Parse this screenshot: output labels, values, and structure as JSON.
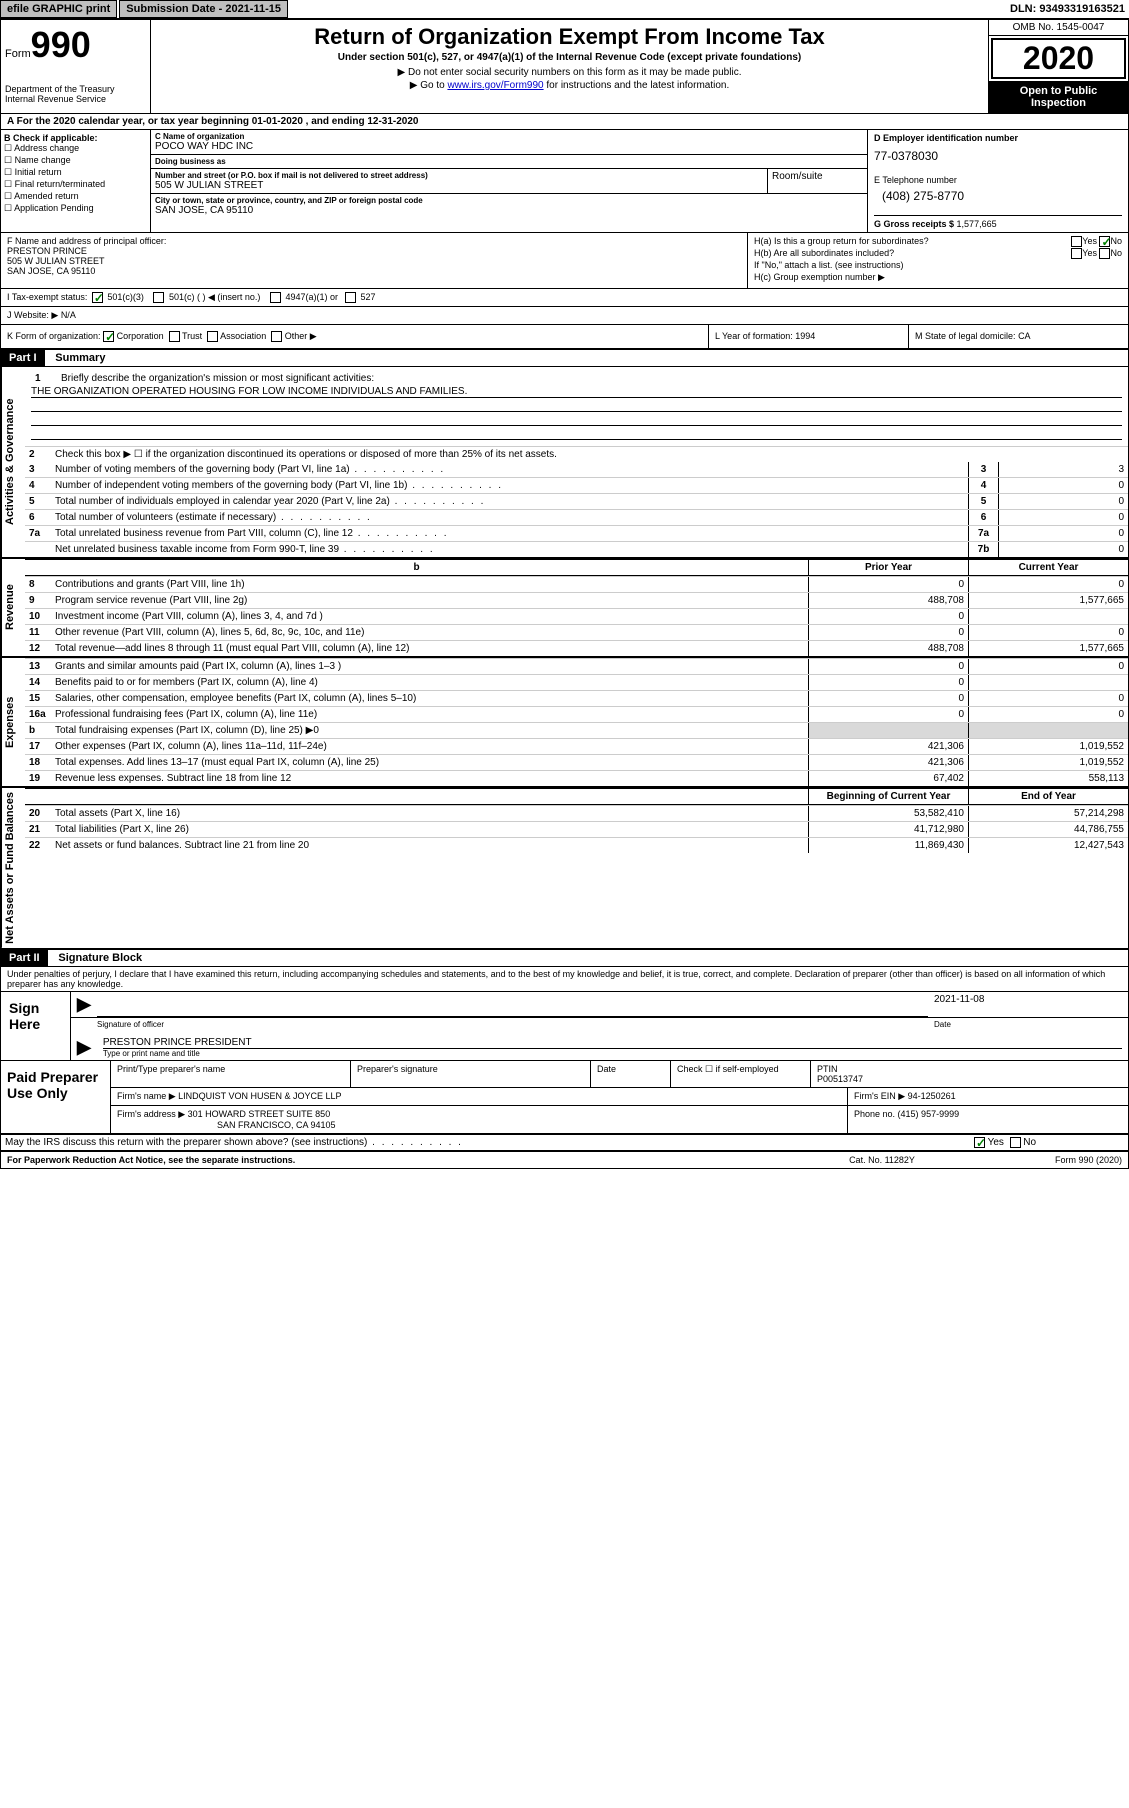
{
  "topbar": {
    "efile": "efile GRAPHIC print",
    "sub_label": "Submission Date - ",
    "sub_date": "2021-11-15",
    "dln_label": "DLN: ",
    "dln": "93493319163521"
  },
  "header": {
    "form_word": "Form",
    "form_num": "990",
    "dept": "Department of the Treasury\nInternal Revenue Service",
    "title": "Return of Organization Exempt From Income Tax",
    "sub": "Under section 501(c), 527, or 4947(a)(1) of the Internal Revenue Code (except private foundations)",
    "note1": "▶ Do not enter social security numbers on this form as it may be made public.",
    "note2_pre": "▶ Go to ",
    "note2_link": "www.irs.gov/Form990",
    "note2_post": " for instructions and the latest information.",
    "omb": "OMB No. 1545-0047",
    "year": "2020",
    "open": "Open to Public Inspection"
  },
  "A": "For the 2020 calendar year, or tax year beginning 01-01-2020  , and ending 12-31-2020",
  "B": {
    "hdr": "B Check if applicable:",
    "items": [
      "Address change",
      "Name change",
      "Initial return",
      "Final return/terminated",
      "Amended return",
      "Application Pending"
    ]
  },
  "C": {
    "name_lbl": "C Name of organization",
    "name": "POCO WAY HDC INC",
    "dba_lbl": "Doing business as",
    "dba": "",
    "street_lbl": "Number and street (or P.O. box if mail is not delivered to street address)",
    "room_lbl": "Room/suite",
    "street": "505 W JULIAN STREET",
    "city_lbl": "City or town, state or province, country, and ZIP or foreign postal code",
    "city": "SAN JOSE, CA  95110"
  },
  "D": {
    "ein_lbl": "D Employer identification number",
    "ein": "77-0378030",
    "tel_lbl": "E Telephone number",
    "tel": "(408) 275-8770",
    "gross_lbl": "G Gross receipts $ ",
    "gross": "1,577,665"
  },
  "F": {
    "lbl": "F  Name and address of principal officer:",
    "name": "PRESTON PRINCE",
    "addr1": "505 W JULIAN STREET",
    "addr2": "SAN JOSE, CA  95110"
  },
  "H": {
    "a": "H(a)  Is this a group return for subordinates?",
    "b": "H(b)  Are all subordinates included?",
    "bnote": "If \"No,\" attach a list. (see instructions)",
    "c": "H(c)  Group exemption number ▶",
    "yes": "Yes",
    "no": "No"
  },
  "I": {
    "lbl": "Tax-exempt status:",
    "o1": "501(c)(3)",
    "o2": "501(c) (  ) ◀ (insert no.)",
    "o3": "4947(a)(1) or",
    "o4": "527"
  },
  "J": {
    "lbl": "Website: ▶",
    "val": "N/A"
  },
  "K": {
    "lbl": "K Form of organization:",
    "opts": [
      "Corporation",
      "Trust",
      "Association",
      "Other ▶"
    ],
    "L": "L Year of formation: ",
    "Lval": "1994",
    "M": "M State of legal domicile: ",
    "Mval": "CA"
  },
  "part1": {
    "label": "Part I",
    "title": "Summary",
    "q1": "Briefly describe the organization's mission or most significant activities:",
    "mission": "THE ORGANIZATION OPERATED HOUSING FOR LOW INCOME INDIVIDUALS AND FAMILIES.",
    "q2": "Check this box ▶ ☐  if the organization discontinued its operations or disposed of more than 25% of its net assets.",
    "gov_label": "Activities & Governance",
    "rows_gov": [
      {
        "n": "3",
        "t": "Number of voting members of the governing body (Part VI, line 1a)",
        "a": "3",
        "v": "3"
      },
      {
        "n": "4",
        "t": "Number of independent voting members of the governing body (Part VI, line 1b)",
        "a": "4",
        "v": "0"
      },
      {
        "n": "5",
        "t": "Total number of individuals employed in calendar year 2020 (Part V, line 2a)",
        "a": "5",
        "v": "0"
      },
      {
        "n": "6",
        "t": "Total number of volunteers (estimate if necessary)",
        "a": "6",
        "v": "0"
      },
      {
        "n": "7a",
        "t": "Total unrelated business revenue from Part VIII, column (C), line 12",
        "a": "7a",
        "v": "0"
      },
      {
        "n": "",
        "t": "Net unrelated business taxable income from Form 990-T, line 39",
        "a": "7b",
        "v": "0"
      }
    ],
    "rev_label": "Revenue",
    "prior": "Prior Year",
    "current": "Current Year",
    "rows_rev": [
      {
        "n": "8",
        "t": "Contributions and grants (Part VIII, line 1h)",
        "p": "0",
        "c": "0"
      },
      {
        "n": "9",
        "t": "Program service revenue (Part VIII, line 2g)",
        "p": "488,708",
        "c": "1,577,665"
      },
      {
        "n": "10",
        "t": "Investment income (Part VIII, column (A), lines 3, 4, and 7d )",
        "p": "0",
        "c": ""
      },
      {
        "n": "11",
        "t": "Other revenue (Part VIII, column (A), lines 5, 6d, 8c, 9c, 10c, and 11e)",
        "p": "0",
        "c": "0"
      },
      {
        "n": "12",
        "t": "Total revenue—add lines 8 through 11 (must equal Part VIII, column (A), line 12)",
        "p": "488,708",
        "c": "1,577,665"
      }
    ],
    "exp_label": "Expenses",
    "rows_exp": [
      {
        "n": "13",
        "t": "Grants and similar amounts paid (Part IX, column (A), lines 1–3 )",
        "p": "0",
        "c": "0"
      },
      {
        "n": "14",
        "t": "Benefits paid to or for members (Part IX, column (A), line 4)",
        "p": "0",
        "c": ""
      },
      {
        "n": "15",
        "t": "Salaries, other compensation, employee benefits (Part IX, column (A), lines 5–10)",
        "p": "0",
        "c": "0"
      },
      {
        "n": "16a",
        "t": "Professional fundraising fees (Part IX, column (A), line 11e)",
        "p": "0",
        "c": "0"
      },
      {
        "n": "b",
        "t": "Total fundraising expenses (Part IX, column (D), line 25) ▶0",
        "p": "",
        "c": "",
        "shade": true
      },
      {
        "n": "17",
        "t": "Other expenses (Part IX, column (A), lines 11a–11d, 11f–24e)",
        "p": "421,306",
        "c": "1,019,552"
      },
      {
        "n": "18",
        "t": "Total expenses. Add lines 13–17 (must equal Part IX, column (A), line 25)",
        "p": "421,306",
        "c": "1,019,552"
      },
      {
        "n": "19",
        "t": "Revenue less expenses. Subtract line 18 from line 12",
        "p": "67,402",
        "c": "558,113"
      }
    ],
    "na_label": "Net Assets or Fund Balances",
    "begin": "Beginning of Current Year",
    "end": "End of Year",
    "rows_na": [
      {
        "n": "20",
        "t": "Total assets (Part X, line 16)",
        "p": "53,582,410",
        "c": "57,214,298"
      },
      {
        "n": "21",
        "t": "Total liabilities (Part X, line 26)",
        "p": "41,712,980",
        "c": "44,786,755"
      },
      {
        "n": "22",
        "t": "Net assets or fund balances. Subtract line 21 from line 20",
        "p": "11,869,430",
        "c": "12,427,543"
      }
    ]
  },
  "part2": {
    "label": "Part II",
    "title": "Signature Block",
    "perjury": "Under penalties of perjury, I declare that I have examined this return, including accompanying schedules and statements, and to the best of my knowledge and belief, it is true, correct, and complete. Declaration of preparer (other than officer) is based on all information of which preparer has any knowledge.",
    "sign_here": "Sign Here",
    "sig_officer": "Signature of officer",
    "date_lbl": "Date",
    "sig_date": "2021-11-08",
    "name_title": "PRESTON PRINCE PRESIDENT",
    "type_lbl": "Type or print name and title",
    "paid": "Paid Preparer Use Only",
    "print_lbl": "Print/Type preparer's name",
    "prep_sig_lbl": "Preparer's signature",
    "check_lbl": "Check ☐ if self-employed",
    "ptin_lbl": "PTIN",
    "ptin": "P00513747",
    "firm_name_lbl": "Firm's name   ▶ ",
    "firm_name": "LINDQUIST VON HUSEN & JOYCE LLP",
    "firm_ein_lbl": "Firm's EIN ▶ ",
    "firm_ein": "94-1250261",
    "firm_addr_lbl": "Firm's address ▶ ",
    "firm_addr1": "301 HOWARD STREET SUITE 850",
    "firm_addr2": "SAN FRANCISCO, CA  94105",
    "phone_lbl": "Phone no. ",
    "phone": "(415) 957-9999",
    "discuss": "May the IRS discuss this return with the preparer shown above? (see instructions)"
  },
  "footer": {
    "left": "For Paperwork Reduction Act Notice, see the separate instructions.",
    "mid": "Cat. No. 11282Y",
    "right": "Form 990 (2020)"
  }
}
